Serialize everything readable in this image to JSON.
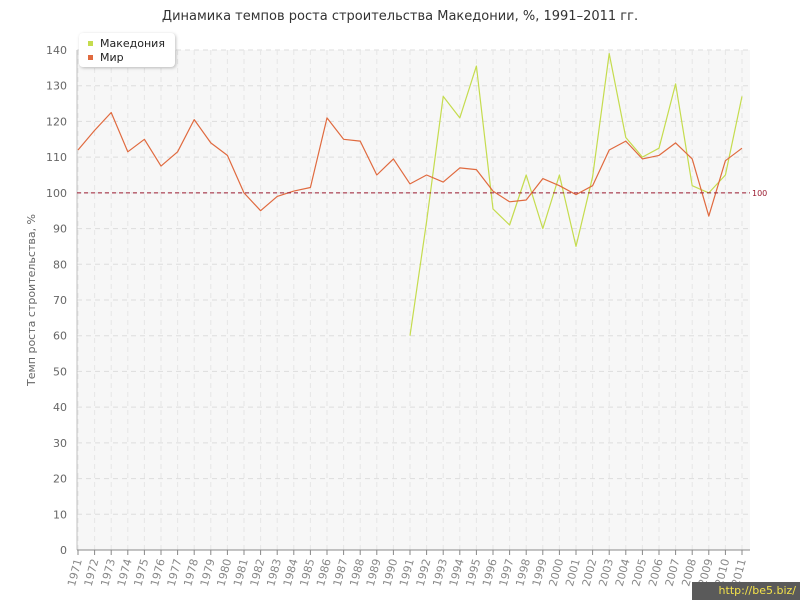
{
  "title": "Динамика темпов роста строительства Македонии, %, 1991–2011 гг.",
  "watermark": "http://be5.biz/",
  "chart_data": {
    "type": "line",
    "title": "Динамика темпов роста строительства Македонии, %, 1991–2011 гг.",
    "xlabel": "",
    "ylabel": "Темп роста строительства, %",
    "ylim": [
      0,
      140
    ],
    "yticks": [
      0,
      10,
      20,
      30,
      40,
      50,
      60,
      70,
      80,
      90,
      100,
      110,
      120,
      130,
      140
    ],
    "x": [
      "1971",
      "1972",
      "1973",
      "1974",
      "1975",
      "1976",
      "1977",
      "1978",
      "1979",
      "1980",
      "1981",
      "1982",
      "1983",
      "1984",
      "1985",
      "1986",
      "1987",
      "1988",
      "1989",
      "1990",
      "1991",
      "1992",
      "1993",
      "1994",
      "1995",
      "1996",
      "1997",
      "1998",
      "1999",
      "2000",
      "2001",
      "2002",
      "2003",
      "2004",
      "2005",
      "2006",
      "2007",
      "2008",
      "2009",
      "2010",
      "2011"
    ],
    "grid": true,
    "legend": "top-left",
    "reference_line": {
      "value": 100,
      "label": "100",
      "color": "#9b1b30"
    },
    "series": [
      {
        "name": "Македония",
        "color": "#c5dc4e",
        "values": [
          null,
          null,
          null,
          null,
          null,
          null,
          null,
          null,
          null,
          null,
          null,
          null,
          null,
          null,
          null,
          null,
          null,
          null,
          null,
          null,
          60,
          92,
          127,
          121,
          135.5,
          95.5,
          91,
          105,
          90,
          105,
          85,
          104.5,
          139,
          115.5,
          110,
          112.5,
          130.5,
          102,
          100,
          105,
          127
        ]
      },
      {
        "name": "Мир",
        "color": "#e06a3f",
        "values": [
          112,
          117.5,
          122.5,
          111.5,
          115,
          107.5,
          111.5,
          120.5,
          114,
          110.5,
          100,
          95,
          99,
          100.5,
          101.5,
          121,
          115,
          114.5,
          105,
          109.5,
          102.5,
          105,
          103,
          107,
          106.5,
          100.5,
          97.5,
          98,
          104,
          102,
          99.5,
          102,
          112,
          114.5,
          109.5,
          110.5,
          114,
          109.5,
          93.5,
          109,
          112.5
        ]
      }
    ]
  }
}
